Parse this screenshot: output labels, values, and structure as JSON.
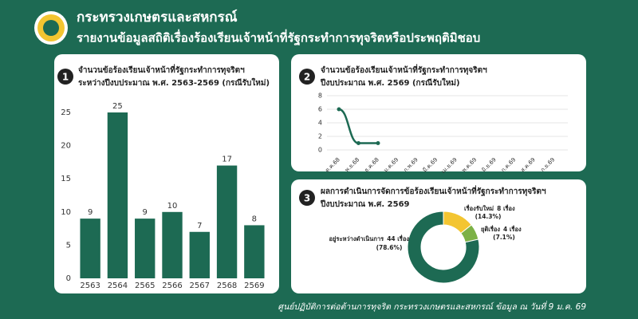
{
  "header": {
    "title": "กระทรวงเกษตรและสหกรณ์",
    "subtitle": "รายงานข้อมูลสถิติเรื่องร้องเรียนเจ้าหน้าที่รัฐกระทำการทุจริตหรือประพฤติมิชอบ"
  },
  "chart_data": [
    {
      "type": "bar",
      "badge": "1",
      "title": "จำนวนข้อร้องเรียนเจ้าหน้าที่รัฐกระทำการทุจริตฯ",
      "subtitle": "ระหว่างปีงบประมาณ พ.ศ. 2563-2569 (กรณีรับใหม่)",
      "categories": [
        "2563",
        "2564",
        "2565",
        "2566",
        "2567",
        "2568",
        "2569"
      ],
      "values": [
        9,
        25,
        9,
        10,
        7,
        17,
        8
      ],
      "color": "#1d6a53",
      "ylim": [
        0,
        25
      ],
      "yticks": [
        0,
        5,
        10,
        15,
        20,
        25
      ],
      "grid": false
    },
    {
      "type": "line",
      "badge": "2",
      "title": "จำนวนข้อร้องเรียนเจ้าหน้าที่รัฐกระทำการทุจริตฯ",
      "subtitle": "ปีงบประมาณ พ.ศ. 2569 (กรณีรับใหม่)",
      "categories": [
        "ต.ค.68",
        "พ.ย.68",
        "ธ.ค.68",
        "ม.ค.69",
        "ก.พ.69",
        "มี.ค.69",
        "เม.ย.69",
        "พ.ค.69",
        "มิ.ย.69",
        "ก.ค.69",
        "ส.ค.69",
        "ก.ย.69"
      ],
      "values": [
        6,
        1,
        1,
        null,
        null,
        null,
        null,
        null,
        null,
        null,
        null,
        null
      ],
      "color": "#1d6a53",
      "ylim": [
        0,
        8
      ],
      "yticks": [
        0,
        2,
        4,
        6,
        8
      ],
      "grid": true
    },
    {
      "type": "pie",
      "badge": "3",
      "title": "ผลการดำเนินการจัดการข้อร้องเรียนเจ้าหน้าที่รัฐกระทำการทุจริตฯ",
      "subtitle": "ปีงบประมาณ พ.ศ. 2569",
      "categories": [
        "เรื่องรับใหม่",
        "ยุติเรื่อง",
        "อยู่ระหว่างดำเนินการ"
      ],
      "values": [
        8,
        4,
        44
      ],
      "value_labels": [
        "8 เรื่อง",
        "4 เรื่อง",
        "44 เรื่อง"
      ],
      "percent_labels": [
        "(14.3%)",
        "(7.1%)",
        "(78.6%)"
      ],
      "colors": [
        "#f3c531",
        "#7cb146",
        "#1d6a53"
      ],
      "donut": true
    }
  ],
  "footer": "ศูนย์ปฏิบัติการต่อต้านการทุจริต กระทรวงเกษตรและสหกรณ์ ข้อมูล ณ วันที่ 9 ม.ค. 69"
}
